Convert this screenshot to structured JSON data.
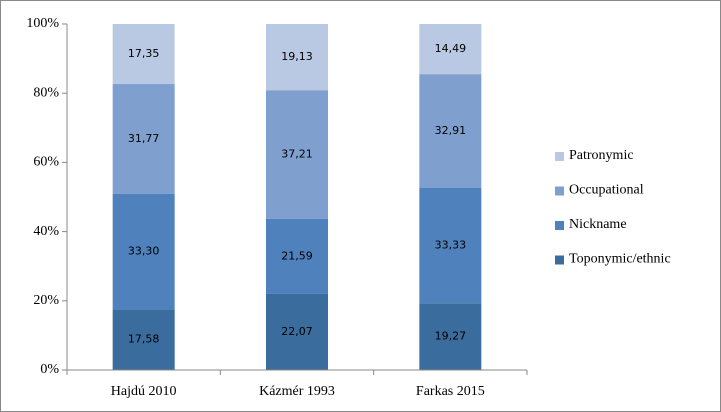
{
  "chart_data": {
    "type": "stacked_bar_100",
    "categories": [
      "Hajdú 2010",
      "Kázmér 1993",
      "Farkas 2015"
    ],
    "series": [
      {
        "name": "Toponymic/ethnic",
        "color": "#3b6c9e",
        "values": [
          17.58,
          22.07,
          19.27
        ],
        "value_labels": [
          "17,58",
          "22,07",
          "19,27"
        ]
      },
      {
        "name": "Nickname",
        "color": "#4f81bd",
        "values": [
          33.3,
          21.59,
          33.33
        ],
        "value_labels": [
          "33,30",
          "21,59",
          "33,33"
        ]
      },
      {
        "name": "Occupational",
        "color": "#7f9fcf",
        "values": [
          31.77,
          37.21,
          32.91
        ],
        "value_labels": [
          "31,77",
          "37,21",
          "32,91"
        ]
      },
      {
        "name": "Patronymic",
        "color": "#b9c9e3",
        "values": [
          17.35,
          19.13,
          14.49
        ],
        "value_labels": [
          "17,35",
          "19,13",
          "14,49"
        ]
      }
    ],
    "ylim": [
      0,
      100
    ],
    "yticks": [
      {
        "value": 0,
        "label": "0%"
      },
      {
        "value": 20,
        "label": "20%"
      },
      {
        "value": 40,
        "label": "40%"
      },
      {
        "value": 60,
        "label": "60%"
      },
      {
        "value": 80,
        "label": "80%"
      },
      {
        "value": 100,
        "label": "100%"
      }
    ],
    "legend": "right"
  }
}
